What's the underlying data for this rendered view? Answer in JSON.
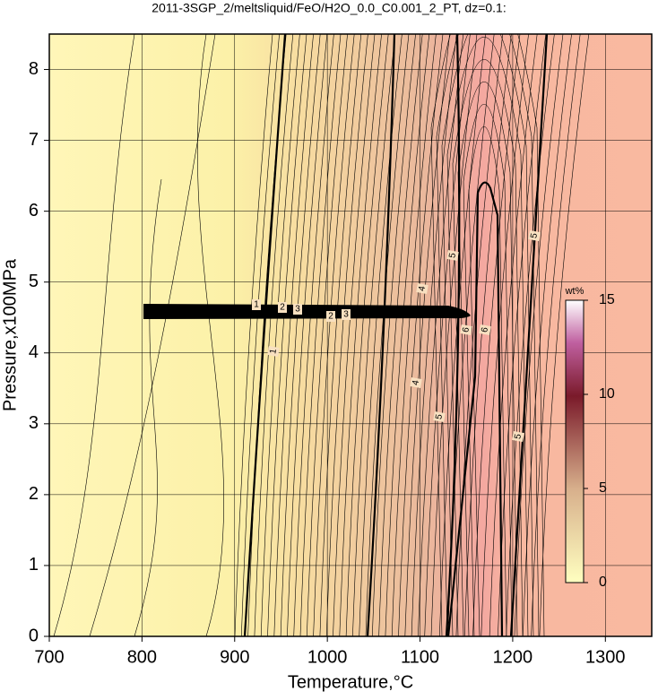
{
  "chart_data": {
    "type": "contour",
    "title": "2011-3SGP_2/meltsliquid/FeO/H2O_0.0_C0.001_2_PT, dz=0.1:",
    "x_label": "Temperature,°C",
    "y_label": "Pressure,x100MPa",
    "xlim": [
      700,
      1350
    ],
    "xticks": [
      700,
      800,
      900,
      1000,
      1100,
      1200,
      1300
    ],
    "ylim": [
      0,
      8.5
    ],
    "yticks": [
      0,
      1,
      2,
      3,
      4,
      5,
      6,
      7,
      8
    ],
    "grid": true,
    "contour_labels": [
      1,
      2,
      3,
      2,
      3,
      1,
      4,
      4,
      5,
      5,
      5,
      5,
      6,
      6
    ],
    "colorbar": {
      "label": "wt%",
      "lim": [
        0,
        15
      ],
      "ticks": [
        0,
        5,
        10,
        15
      ]
    }
  }
}
